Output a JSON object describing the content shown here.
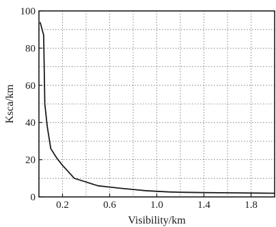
{
  "chart_data": {
    "type": "line",
    "xlabel": "Visibility/km",
    "ylabel": "Ksca/km",
    "xlim": [
      0,
      2.0
    ],
    "ylim": [
      0,
      100
    ],
    "xticks": [
      0.2,
      0.6,
      1.0,
      1.4,
      1.8
    ],
    "xtick_labels": [
      "0.2",
      "0.6",
      "1.0",
      "1.4",
      "1.8"
    ],
    "yticks": [
      0,
      20,
      40,
      60,
      80,
      100
    ],
    "ytick_labels": [
      "0",
      "20",
      "40",
      "60",
      "80",
      "100"
    ],
    "grid": true,
    "grid_style": "dotted",
    "series": [
      {
        "x": [
          0.01,
          0.04,
          0.05,
          0.07,
          0.1,
          0.15,
          0.2,
          0.3,
          0.4,
          0.5,
          0.6,
          0.7,
          0.8,
          0.9,
          1.0,
          1.1,
          1.2,
          1.4,
          1.6,
          1.8,
          2.0
        ],
        "y": [
          94,
          87,
          50,
          38,
          26,
          21,
          17,
          10,
          8,
          6,
          5.3,
          4.6,
          4,
          3.4,
          3,
          2.7,
          2.5,
          2.3,
          2.2,
          2.1,
          2.0
        ]
      }
    ],
    "color": "#1a1a1a"
  }
}
